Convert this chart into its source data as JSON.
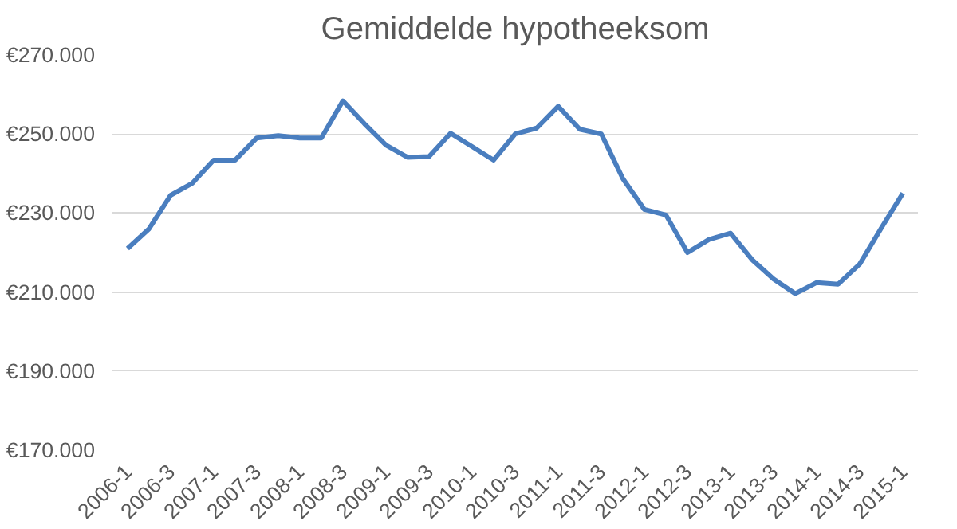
{
  "chart_data": {
    "type": "line",
    "title": "Gemiddelde hypotheeksom",
    "categories": [
      "2006-1",
      null,
      "2006-3",
      null,
      "2007-1",
      null,
      "2007-3",
      null,
      "2008-1",
      null,
      "2008-3",
      null,
      "2009-1",
      null,
      "2009-3",
      null,
      "2010-1",
      null,
      "2010-3",
      null,
      "2011-1",
      null,
      "2011-3",
      null,
      "2012-1",
      null,
      "2012-3",
      null,
      "2013-1",
      null,
      "2013-3",
      null,
      "2014-1",
      null,
      "2014-3",
      null,
      "2015-1"
    ],
    "series": [
      {
        "color": "#4a7ebf",
        "values": [
          221000,
          226000,
          234500,
          237500,
          243400,
          243400,
          249000,
          249600,
          249000,
          249000,
          258400,
          252600,
          247200,
          244100,
          244300,
          250200,
          246800,
          243400,
          250000,
          251500,
          257000,
          251200,
          250000,
          238700,
          230900,
          229500,
          220000,
          223300,
          224900,
          218200,
          213300,
          209600,
          212400,
          212000,
          217100,
          226200,
          235000
        ]
      }
    ],
    "ylim": [
      170000,
      270000
    ],
    "yticks": [
      {
        "value": 170000,
        "label": "€170.000"
      },
      {
        "value": 190000,
        "label": "€190.000"
      },
      {
        "value": 210000,
        "label": "€210.000"
      },
      {
        "value": 230000,
        "label": "€230.000"
      },
      {
        "value": 250000,
        "label": "€250.000"
      },
      {
        "value": 270000,
        "label": "€270.000"
      }
    ],
    "grid": "y",
    "marker": "none",
    "line_style": "solid"
  }
}
